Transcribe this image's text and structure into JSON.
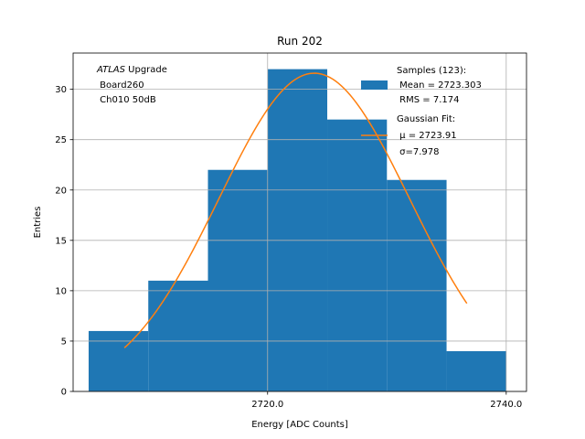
{
  "chart_data": {
    "type": "bar",
    "title": "Run 202",
    "xlabel": "Energy [ADC Counts]",
    "ylabel": "Entries",
    "xlim": [
      2703.7,
      2741.7
    ],
    "ylim": [
      0,
      33.6
    ],
    "x_ticks": [
      2720.0,
      2740.0
    ],
    "x_tick_labels": [
      "2720.0",
      "2740.0"
    ],
    "y_ticks": [
      0,
      5,
      10,
      15,
      20,
      25,
      30
    ],
    "y_tick_labels": [
      "0",
      "5",
      "10",
      "15",
      "20",
      "25",
      "30"
    ],
    "grid": true,
    "bin_edges": [
      2705,
      2710,
      2715,
      2720,
      2725,
      2730,
      2735,
      2740
    ],
    "values": [
      6,
      11,
      22,
      32,
      27,
      21,
      4
    ],
    "fit": {
      "type": "gaussian",
      "mu": 2723.91,
      "sigma": 7.978,
      "amplitude": 31.6,
      "x_range": [
        2708.0,
        2736.7
      ]
    },
    "annotation": {
      "line1_italic": "ATLAS",
      "line1_rest": " Upgrade",
      "line2": " Board260",
      "line3": " Ch010 50dB"
    },
    "legend": {
      "position": "top-right",
      "entries": [
        {
          "type": "patch",
          "lines": [
            "Samples (123):",
            " Mean = 2723.303",
            " RMS = 7.174"
          ]
        },
        {
          "type": "line",
          "lines": [
            "Gaussian Fit:",
            " μ = 2723.91",
            " σ=7.978"
          ]
        }
      ]
    },
    "colors": {
      "bars": "#1f77b4",
      "fit": "#ff7f0e",
      "grid": "#b0b0b0",
      "axes": "#000000"
    }
  }
}
